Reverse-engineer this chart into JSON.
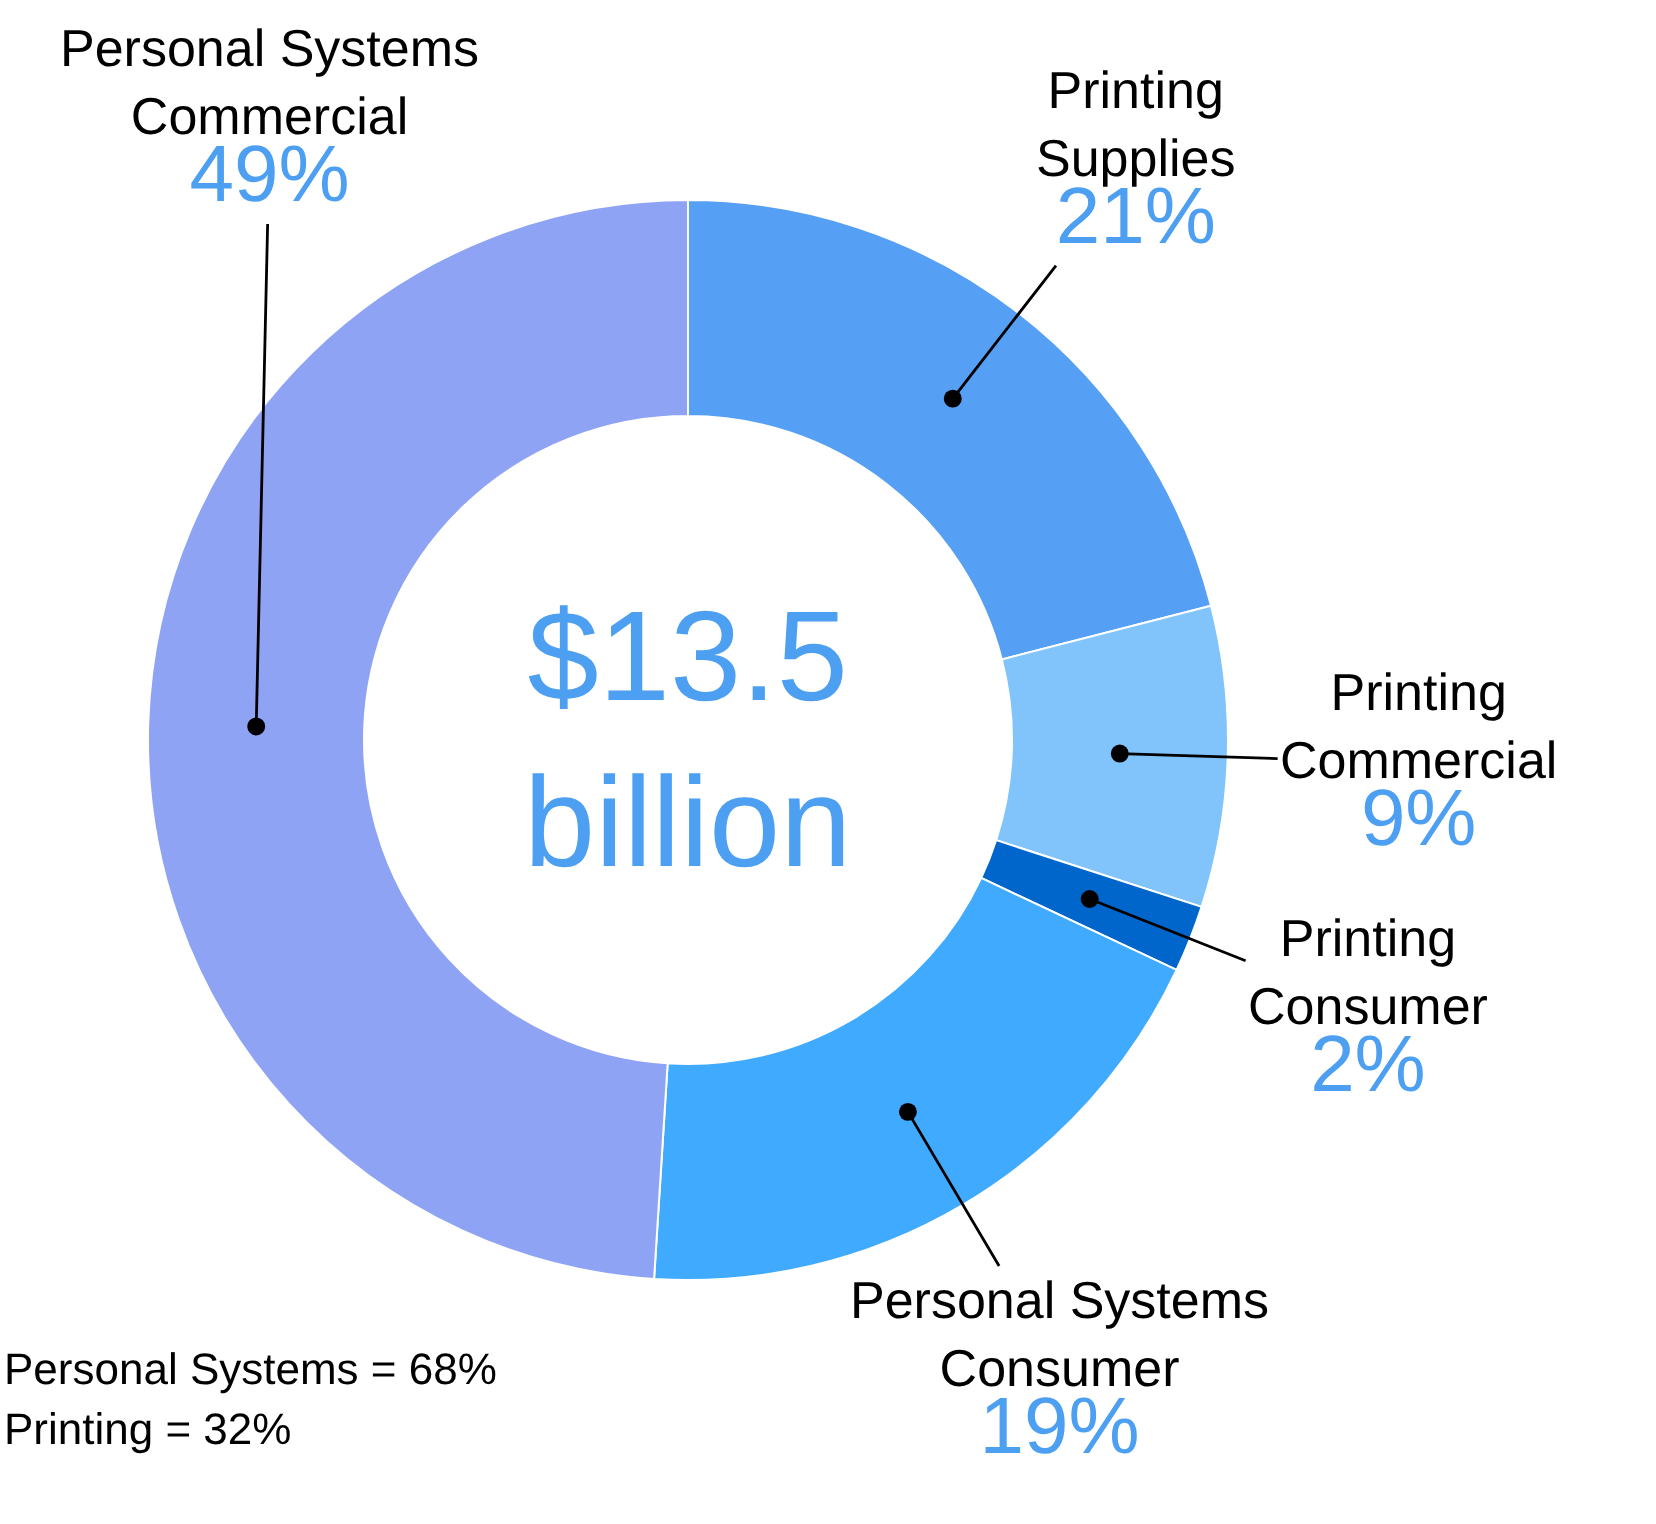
{
  "chart_data": {
    "type": "donut",
    "categories": [
      "Printing Supplies",
      "Printing Commercial",
      "Printing Consumer",
      "Personal Systems Consumer",
      "Personal Systems Commercial"
    ],
    "values": [
      21,
      9,
      2,
      19,
      49
    ],
    "value_labels": [
      "21%",
      "9%",
      "2%",
      "19%",
      "49%"
    ],
    "colors": [
      "#559ff5",
      "#80c4fb",
      "#0066cc",
      "#40aaff",
      "#8fa3f5"
    ],
    "annotations": [
      "$13.5 billion",
      "Personal Systems = 68%",
      "Printing = 32%"
    ]
  }
}
